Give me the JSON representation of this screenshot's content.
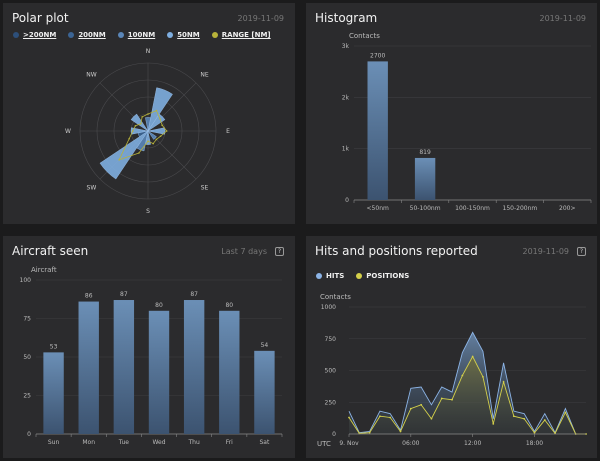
{
  "polar": {
    "title": "Polar plot",
    "date": "2019-11-09",
    "legend": [
      {
        "label": ">200NM",
        "color": "#2d4f7a"
      },
      {
        "label": "200NM",
        "color": "#3b6494"
      },
      {
        "label": "100NM",
        "color": "#5a86b8"
      },
      {
        "label": "50NM",
        "color": "#7eaee0"
      },
      {
        "label": "RANGE [NM]",
        "color": "#b8b33a"
      }
    ]
  },
  "histogram": {
    "title": "Histogram",
    "date": "2019-11-09"
  },
  "aircraft": {
    "title": "Aircraft seen",
    "period": "Last 7 days",
    "help": "?"
  },
  "hits": {
    "title": "Hits and positions reported",
    "date": "2019-11-09",
    "help": "?",
    "legend": [
      {
        "label": "HITS",
        "color": "#8cb4e6"
      },
      {
        "label": "POSITIONS",
        "color": "#d4d04a"
      }
    ]
  },
  "chart_data": [
    {
      "type": "polar",
      "directions": [
        "N",
        "NE",
        "E",
        "SE",
        "S",
        "SW",
        "W",
        "NW"
      ],
      "ring_max": 4,
      "sectors": [
        {
          "series": "50NM",
          "bearing": 22.5,
          "radius": 2.6
        },
        {
          "series": "50NM",
          "bearing": 45,
          "radius": 1.2
        },
        {
          "series": "50NM",
          "bearing": 90,
          "radius": 1.0
        },
        {
          "series": "50NM",
          "bearing": 180,
          "radius": 0.8
        },
        {
          "series": "50NM",
          "bearing": 225,
          "radius": 3.4
        },
        {
          "series": "50NM",
          "bearing": 270,
          "radius": 1.0
        },
        {
          "series": "50NM",
          "bearing": 315,
          "radius": 1.2
        },
        {
          "series": "100NM",
          "bearing": 0,
          "radius": 0.8
        },
        {
          "series": "100NM",
          "bearing": 135,
          "radius": 0.6
        },
        {
          "series": "100NM",
          "bearing": 202.5,
          "radius": 1.2
        },
        {
          "series": "200NM",
          "bearing": 247.5,
          "radius": 0.6
        }
      ],
      "range_line": [
        1.0,
        1.3,
        1.0,
        0.9,
        1.1,
        0.8,
        0.7,
        0.8,
        0.6,
        1.4,
        2.4,
        1.2,
        0.9,
        0.8,
        0.6,
        0.9
      ]
    },
    {
      "type": "bar",
      "ylabel": "Contacts",
      "categories": [
        "<50nm",
        "50-100nm",
        "100-150nm",
        "150-200nm",
        "200>"
      ],
      "values": [
        2700,
        819,
        0,
        0,
        0
      ],
      "yticks": [
        0,
        1000,
        2000,
        3000
      ],
      "ytick_labels": [
        "0",
        "1k",
        "2k",
        "3k"
      ],
      "ylim": [
        0,
        3000
      ]
    },
    {
      "type": "bar",
      "ylabel": "Aircraft",
      "categories": [
        "Sun",
        "Mon",
        "Tue",
        "Wed",
        "Thu",
        "Fri",
        "Sat"
      ],
      "values": [
        53,
        86,
        87,
        80,
        87,
        80,
        54
      ],
      "yticks": [
        0,
        25,
        50,
        75,
        100
      ],
      "ylim": [
        0,
        100
      ]
    },
    {
      "type": "area",
      "ylabel": "Contacts",
      "xlabel": "UTC",
      "x_hours": [
        0,
        1,
        2,
        3,
        4,
        5,
        6,
        7,
        8,
        9,
        10,
        11,
        12,
        13,
        14,
        15,
        16,
        17,
        18,
        19,
        20,
        21,
        22,
        23
      ],
      "xtick_labels": [
        "9. Nov",
        "06:00",
        "12:00",
        "18:00"
      ],
      "xtick_hours": [
        0,
        6,
        12,
        18
      ],
      "yticks": [
        0,
        250,
        500,
        750,
        1000
      ],
      "ylim": [
        0,
        1000
      ],
      "series": [
        {
          "name": "HITS",
          "values": [
            180,
            10,
            20,
            180,
            160,
            30,
            360,
            370,
            230,
            370,
            330,
            640,
            800,
            650,
            120,
            560,
            180,
            160,
            20,
            160,
            10,
            200,
            0,
            0
          ]
        },
        {
          "name": "POSITIONS",
          "values": [
            130,
            5,
            10,
            140,
            130,
            20,
            200,
            230,
            120,
            280,
            270,
            460,
            610,
            450,
            80,
            410,
            140,
            120,
            10,
            110,
            5,
            170,
            0,
            0
          ]
        }
      ]
    }
  ]
}
